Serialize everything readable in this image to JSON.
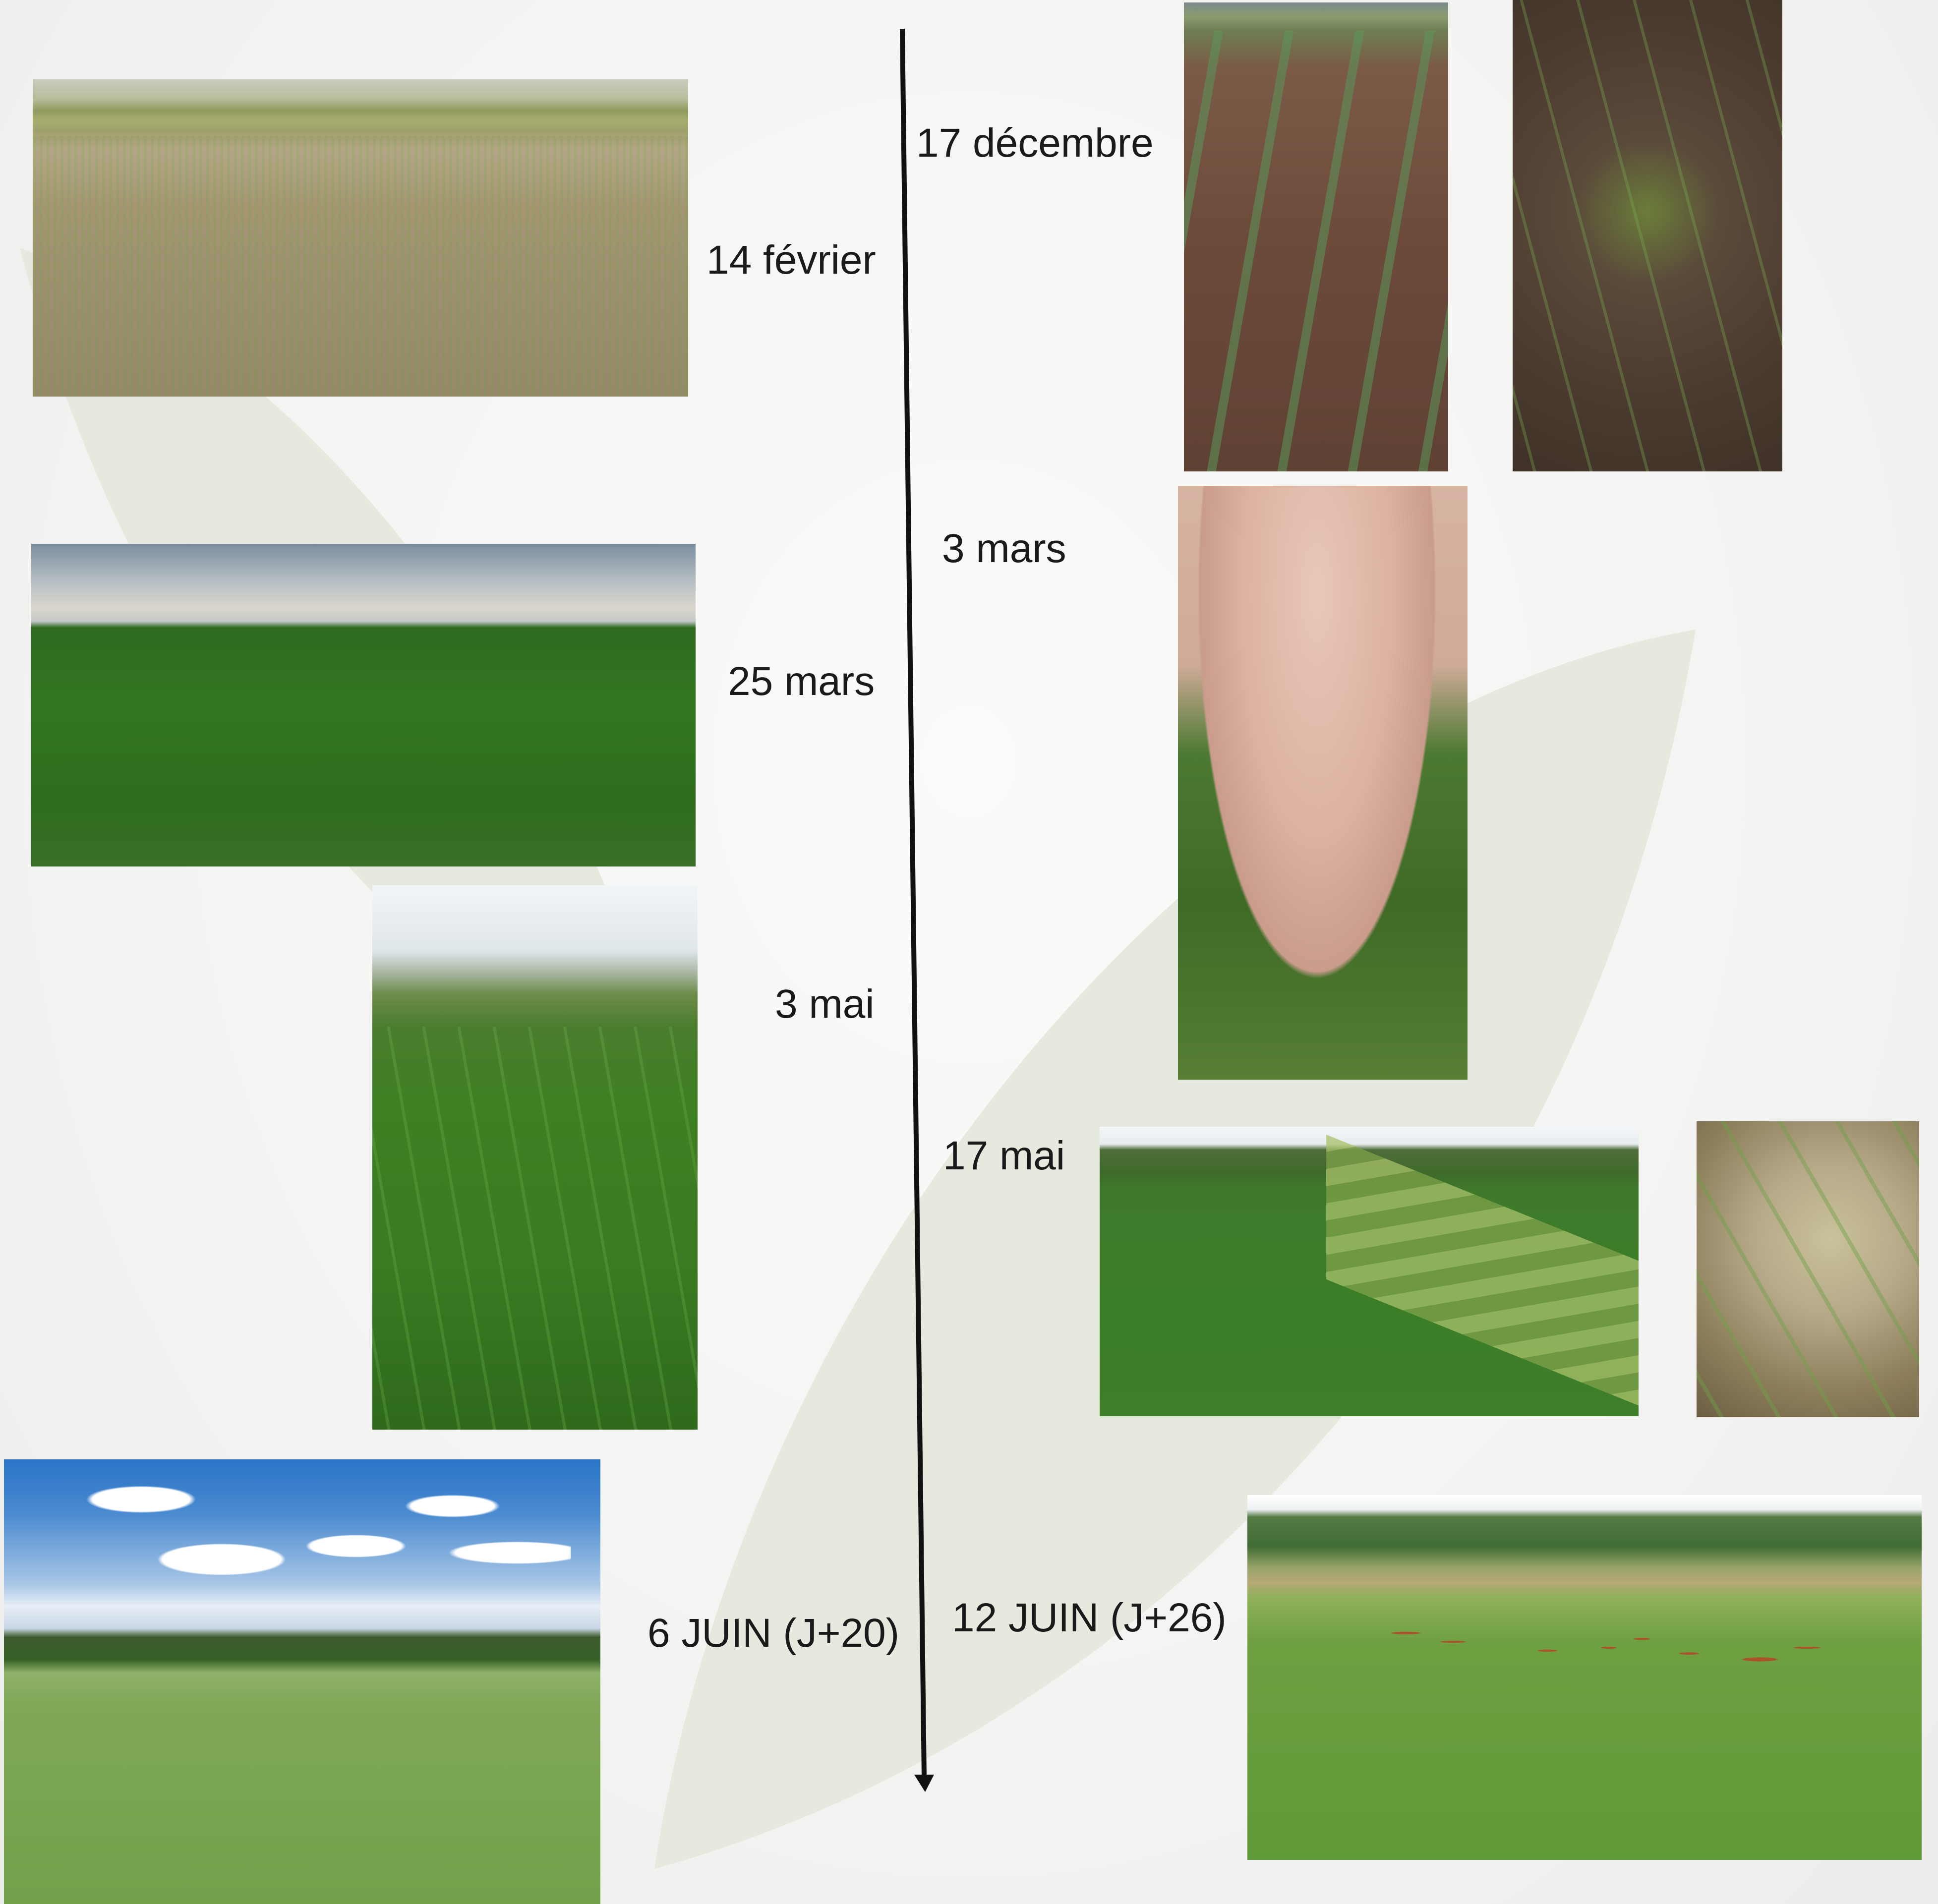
{
  "labels": {
    "dec17": "17 décembre",
    "feb14": "14 février",
    "mar3": "3 mars",
    "mar25": "25 mars",
    "may3": "3 mai",
    "may17": "17 mai",
    "jun6": "6 JUIN (J+20)",
    "jun12": "12 JUIN (J+26)"
  },
  "colors": {
    "background": "#f3f3f1",
    "leaf_shape": "#e6e9de",
    "timeline": "#111111",
    "label_text": "#1a1a1a"
  },
  "timeline": {
    "direction": "down",
    "arrow": "arrowhead-at-bottom"
  }
}
